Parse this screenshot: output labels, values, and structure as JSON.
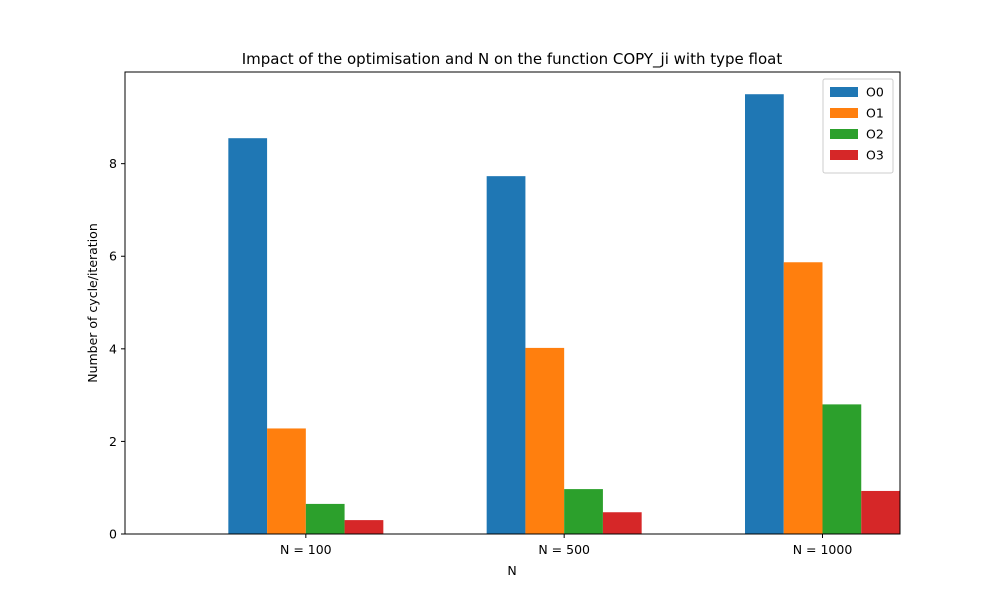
{
  "chart_data": {
    "type": "bar",
    "title": "Impact of the optimisation and N on the function COPY_ji with type float",
    "xlabel": "N",
    "ylabel": "Number of cycle/iteration",
    "categories": [
      "N = 100",
      "N = 500",
      "N = 1000"
    ],
    "ylim": [
      0,
      9.98
    ],
    "yticks": [
      0,
      2,
      4,
      6,
      8
    ],
    "legend_position": "top-right",
    "grid": false,
    "series": [
      {
        "name": "O0",
        "color": "#1f77b4",
        "values": [
          8.55,
          7.73,
          9.5
        ]
      },
      {
        "name": "O1",
        "color": "#ff7f0e",
        "values": [
          2.28,
          4.02,
          5.87
        ]
      },
      {
        "name": "O2",
        "color": "#2ca02c",
        "values": [
          0.65,
          0.97,
          2.8
        ]
      },
      {
        "name": "O3",
        "color": "#d62728",
        "values": [
          0.3,
          0.47,
          0.93
        ]
      }
    ]
  }
}
